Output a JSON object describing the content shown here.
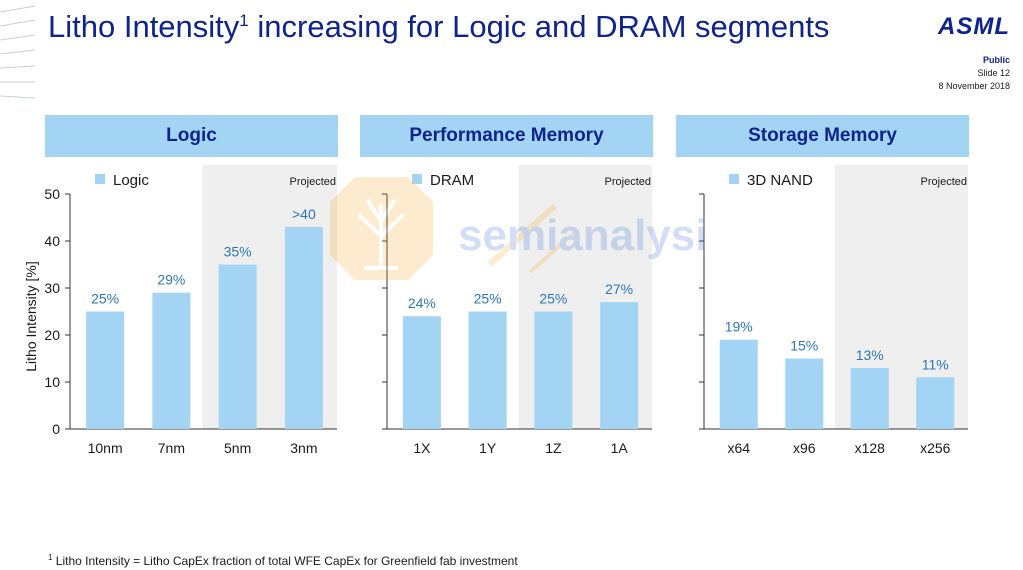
{
  "header": {
    "title": "Litho Intensity",
    "title_sup": "1",
    "title_rest": " increasing for Logic and DRAM segments",
    "brand": "ASML",
    "classification": "Public",
    "slide": "Slide 12",
    "date": "8 November 2018"
  },
  "colors": {
    "title": "#0f238c",
    "bar": "#a4d4f4",
    "header_fill": "#a4d4f4",
    "bar_label": "#2e75b6",
    "projected_shading": "#efefef"
  },
  "panels": [
    {
      "header": "Logic"
    },
    {
      "header": "Performance Memory"
    },
    {
      "header": "Storage Memory"
    }
  ],
  "chart_data": [
    {
      "type": "bar",
      "title": "Logic",
      "series_name": "Logic",
      "categories": [
        "10nm",
        "7nm",
        "5nm",
        "3nm"
      ],
      "values": [
        25,
        29,
        35,
        43
      ],
      "labels": [
        "25%",
        "29%",
        "35%",
        ">40"
      ],
      "projected_from_index": 2,
      "projected_label": "Projected",
      "ylabel": "Litho Intensity [%]",
      "ylim": [
        0,
        50
      ],
      "yticks": [
        0,
        10,
        20,
        30,
        40,
        50
      ],
      "legend": "top-left",
      "grid": false
    },
    {
      "type": "bar",
      "title": "Performance Memory",
      "series_name": "DRAM",
      "categories": [
        "1X",
        "1Y",
        "1Z",
        "1A"
      ],
      "values": [
        24,
        25,
        25,
        27
      ],
      "labels": [
        "24%",
        "25%",
        "25%",
        "27%"
      ],
      "projected_from_index": 2,
      "projected_label": "Projected",
      "ylim": [
        0,
        50
      ],
      "legend": "top-left",
      "grid": false
    },
    {
      "type": "bar",
      "title": "Storage Memory",
      "series_name": "3D NAND",
      "categories": [
        "x64",
        "x96",
        "x128",
        "x256"
      ],
      "values": [
        19,
        15,
        13,
        11
      ],
      "labels": [
        "19%",
        "15%",
        "13%",
        "11%"
      ],
      "projected_from_index": 2,
      "projected_label": "Projected",
      "ylim": [
        0,
        50
      ],
      "legend": "top-left",
      "grid": false
    }
  ],
  "footnote": {
    "sup": "1",
    "text": " Litho Intensity = Litho CapEx fraction of total WFE CapEx for Greenfield fab investment"
  },
  "watermark": {
    "text": "semianalysis"
  }
}
